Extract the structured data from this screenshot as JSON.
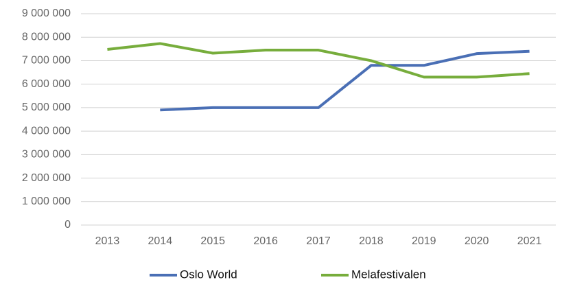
{
  "chart_data": {
    "type": "line",
    "categories": [
      "2013",
      "2014",
      "2015",
      "2016",
      "2017",
      "2018",
      "2019",
      "2020",
      "2021"
    ],
    "series": [
      {
        "name": "Oslo World",
        "color": "#4a6fb5",
        "values": [
          null,
          4900000,
          5000000,
          5000000,
          5000000,
          6800000,
          6800000,
          7300000,
          7400000
        ]
      },
      {
        "name": "Melafestivalen",
        "color": "#77ad3c",
        "values": [
          7480000,
          7730000,
          7320000,
          7450000,
          7450000,
          7000000,
          6300000,
          6300000,
          6450000
        ]
      }
    ],
    "ylim": [
      0,
      9000000
    ],
    "yticks": [
      {
        "value": 0,
        "label": "0"
      },
      {
        "value": 1000000,
        "label": "1 000 000"
      },
      {
        "value": 2000000,
        "label": "2 000 000"
      },
      {
        "value": 3000000,
        "label": "3 000 000"
      },
      {
        "value": 4000000,
        "label": "4 000 000"
      },
      {
        "value": 5000000,
        "label": "5 000 000"
      },
      {
        "value": 6000000,
        "label": "6 000 000"
      },
      {
        "value": 7000000,
        "label": "7 000 000"
      },
      {
        "value": 8000000,
        "label": "8 000 000"
      },
      {
        "value": 9000000,
        "label": "9 000 000"
      }
    ],
    "grid": true,
    "legend": "bottom"
  }
}
